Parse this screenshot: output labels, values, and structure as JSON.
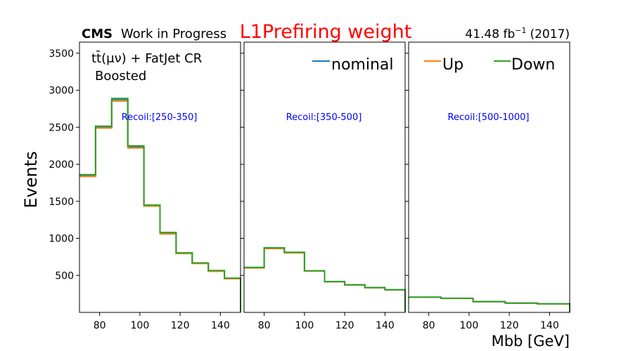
{
  "chart_data": {
    "type": "line",
    "header": {
      "experiment": "CMS",
      "status": "Work in Progress",
      "title": "L1Prefiring weight",
      "lumi": "41.48 fb",
      "lumi_exponent": "−1",
      "year": "(2017)"
    },
    "region_label": {
      "process": "tt̄(μν) + FatJet CR",
      "selection": "Boosted"
    },
    "xlabel": "Mbb [GeV]",
    "ylabel": "Events",
    "ylim": [
      0,
      3650
    ],
    "yticks": [
      500,
      1000,
      1500,
      2000,
      2500,
      3000,
      3500
    ],
    "legend": [
      {
        "name": "nominal",
        "color": "#1f77b4"
      },
      {
        "name": "Up",
        "color": "#ff7f0e"
      },
      {
        "name": "Down",
        "color": "#2ca02c"
      }
    ],
    "panels": [
      {
        "label": "Recoil:[250-350]",
        "xlim": [
          70,
          150
        ],
        "xticks": [
          80,
          100,
          120,
          140
        ],
        "edges": [
          70,
          78,
          86,
          94,
          102,
          110,
          118,
          126,
          134,
          142,
          150
        ],
        "series": [
          {
            "name": "nominal",
            "color": "#1f77b4",
            "values": [
              1850,
              2505,
              2875,
              2235,
              1445,
              1070,
              800,
              665,
              560,
              460
            ]
          },
          {
            "name": "Up",
            "color": "#ff7f0e",
            "values": [
              1835,
              2490,
              2855,
              2220,
              1435,
              1060,
              795,
              660,
              555,
              455
            ]
          },
          {
            "name": "Down",
            "color": "#2ca02c",
            "values": [
              1860,
              2515,
              2890,
              2250,
              1450,
              1080,
              805,
              668,
              565,
              462
            ]
          }
        ]
      },
      {
        "label": "Recoil:[350-500]",
        "xlim": [
          70,
          150
        ],
        "xticks": [
          80,
          100,
          120,
          140
        ],
        "edges": [
          70,
          80,
          90,
          100,
          110,
          120,
          130,
          140,
          150
        ],
        "series": [
          {
            "name": "nominal",
            "color": "#1f77b4",
            "values": [
              605,
              868,
              808,
              560,
              415,
              372,
              335,
              305
            ]
          },
          {
            "name": "Up",
            "color": "#ff7f0e",
            "values": [
              600,
              862,
              803,
              558,
              413,
              370,
              333,
              303
            ]
          },
          {
            "name": "Down",
            "color": "#2ca02c",
            "values": [
              608,
              872,
              812,
              562,
              416,
              373,
              336,
              306
            ]
          }
        ]
      },
      {
        "label": "Recoil:[500-1000]",
        "xlim": [
          70,
          150
        ],
        "xticks": [
          80,
          100,
          120,
          140
        ],
        "edges": [
          70,
          86,
          102,
          118,
          134,
          150
        ],
        "series": [
          {
            "name": "nominal",
            "color": "#1f77b4",
            "values": [
              205,
              190,
              145,
              125,
              115
            ]
          },
          {
            "name": "Up",
            "color": "#ff7f0e",
            "values": [
              204,
              189,
              144,
              124,
              114
            ]
          },
          {
            "name": "Down",
            "color": "#2ca02c",
            "values": [
              206,
              191,
              146,
              126,
              116
            ]
          }
        ]
      }
    ]
  }
}
